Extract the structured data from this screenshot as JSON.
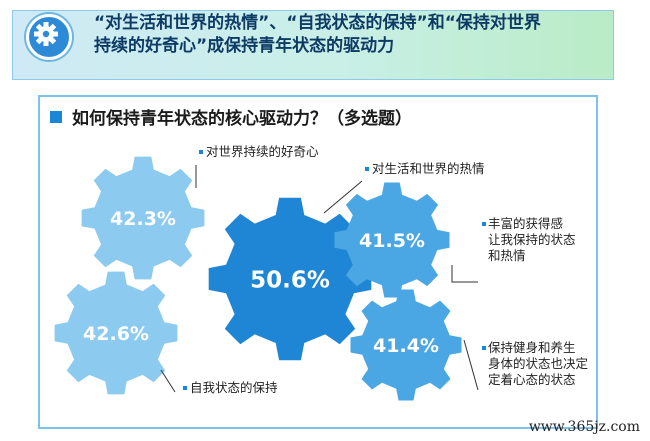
{
  "header": {
    "title_line1": "“对生活和世界的热情”、“自我状态的保持”和“保持对世界",
    "title_line2": "持续的好奇心”成保持青年状态的驱动力",
    "icon": "gear-icon"
  },
  "question": "如何保持青年状态的核心驱动力？（多选题）",
  "chart_data": {
    "type": "bar",
    "title": "如何保持青年状态的核心驱动力？（多选题）",
    "value_format": "percent",
    "categories": [
      "对生活和世界的热情",
      "自我状态的保持",
      "对世界持续的好奇心",
      "丰富的获得感让我保持的状态和热情",
      "保持健身和养生身体的状态也决定着心态的状态"
    ],
    "values": [
      50.6,
      42.6,
      42.3,
      41.5,
      41.4
    ],
    "value_labels": [
      "50.6%",
      "42.6%",
      "42.3%",
      "41.5%",
      "41.4%"
    ],
    "label_lines": [
      [
        "对生活和世界的热情"
      ],
      [
        "自我状态的保持"
      ],
      [
        "对世界持续的好奇心"
      ],
      [
        "丰富的获得感",
        "让我保持的状态",
        "和热情"
      ],
      [
        "保持健身和养生",
        "身体的状态也决定",
        "定着心态的状态"
      ]
    ],
    "colors": [
      "#1f86d6",
      "#8ccbef",
      "#8ccbef",
      "#4aa7e4",
      "#4aa7e4"
    ]
  },
  "watermark": "www.365jz.com"
}
